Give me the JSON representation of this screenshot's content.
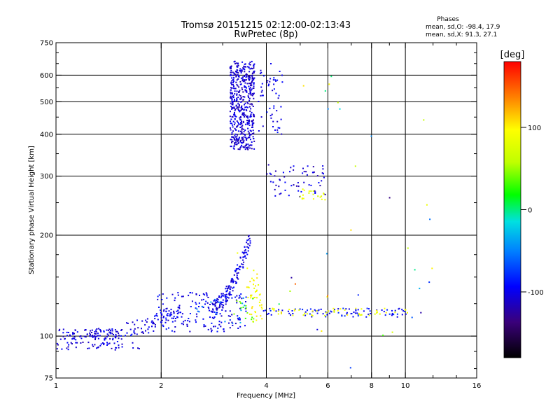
{
  "chart_data": {
    "type": "scatter",
    "title_line1": "Tromsø 20151215 02:12:00-02:13:43",
    "title_line2": "RwPretec (8p)",
    "phases": {
      "heading": "Phases",
      "o_line": "mean, sd,O: -98.4, 17.9",
      "x_line": "mean, sd,X:  91.3, 27.1"
    },
    "xlabel": "Frequency [MHz]",
    "ylabel": "Stationary phase Virtual Height [km]",
    "x_scale": "log",
    "y_scale": "log",
    "xlim": [
      1,
      16
    ],
    "ylim": [
      75,
      750
    ],
    "x_ticks": [
      {
        "v": 1,
        "label": "1"
      },
      {
        "v": 2,
        "label": "2"
      },
      {
        "v": 4,
        "label": "4"
      },
      {
        "v": 6,
        "label": "6"
      },
      {
        "v": 8,
        "label": "8"
      },
      {
        "v": 10,
        "label": "10"
      },
      {
        "v": 16,
        "label": "16"
      }
    ],
    "x_grid": [
      2,
      4,
      6,
      8,
      10
    ],
    "x_minor": [
      3,
      5,
      7,
      9,
      12,
      14
    ],
    "y_ticks": [
      {
        "v": 75,
        "label": "75"
      },
      {
        "v": 100,
        "label": "100"
      },
      {
        "v": 200,
        "label": "200"
      },
      {
        "v": 300,
        "label": "300"
      },
      {
        "v": 400,
        "label": "400"
      },
      {
        "v": 500,
        "label": "500"
      },
      {
        "v": 600,
        "label": "600"
      },
      {
        "v": 750,
        "label": "750"
      }
    ],
    "y_grid": [
      100,
      200,
      300,
      400,
      500,
      600
    ],
    "grid": true,
    "colorbar": {
      "label": "[deg]",
      "range": [
        -180,
        180
      ],
      "ticks": [
        {
          "v": 100,
          "label": "100"
        },
        {
          "v": 0,
          "label": "0"
        },
        {
          "v": -100,
          "label": "-100"
        }
      ]
    },
    "point_groups": [
      {
        "name": "e-layer-low",
        "x": [
          1.0,
          1.55
        ],
        "y": [
          97,
          105
        ],
        "phase": -105,
        "n": 90
      },
      {
        "name": "e-layer-low-bottom",
        "x": [
          1.0,
          1.75
        ],
        "y": [
          91,
          96
        ],
        "phase": -108,
        "n": 45
      },
      {
        "name": "e-rise",
        "x": [
          1.3,
          2.3
        ],
        "y": [
          100,
          120
        ],
        "phase": -102,
        "n": 90
      },
      {
        "name": "es-band",
        "x": [
          1.9,
          3.5
        ],
        "y": [
          103,
          135
        ],
        "phase": -100,
        "n": 170
      },
      {
        "name": "es-band-mixed",
        "x": [
          2.4,
          3.5
        ],
        "y": [
          105,
          130
        ],
        "phase": -45,
        "n": 20
      },
      {
        "name": "e-cusp",
        "x": [
          2.8,
          3.6
        ],
        "y": [
          120,
          195
        ],
        "phase": -103,
        "n": 150
      },
      {
        "name": "x-trace",
        "x": [
          3.5,
          3.9
        ],
        "y": [
          110,
          160
        ],
        "phase": 95,
        "n": 45
      },
      {
        "name": "x-trace-green",
        "x": [
          3.2,
          3.7
        ],
        "y": [
          108,
          130
        ],
        "phase": 40,
        "n": 15
      },
      {
        "name": "es-flat",
        "x": [
          3.9,
          10.2
        ],
        "y": [
          114,
          121
        ],
        "phase": -90,
        "n": 90
      },
      {
        "name": "es-flat-x",
        "x": [
          4.0,
          10.2
        ],
        "y": [
          115,
          121
        ],
        "phase": 90,
        "n": 50
      },
      {
        "name": "f-cluster",
        "x": [
          3.15,
          3.7
        ],
        "y": [
          360,
          660
        ],
        "phase": -108,
        "n": 520
      },
      {
        "name": "f-cluster-edge",
        "x": [
          3.8,
          4.45
        ],
        "y": [
          400,
          650
        ],
        "phase": -100,
        "n": 55
      },
      {
        "name": "f-trace",
        "x": [
          4.0,
          5.9
        ],
        "y": [
          260,
          325
        ],
        "phase": -106,
        "n": 60
      },
      {
        "name": "f-trace-x",
        "x": [
          5.0,
          5.9
        ],
        "y": [
          255,
          275
        ],
        "phase": 80,
        "n": 20
      },
      {
        "name": "scatter-mixed",
        "x": [
          3.0,
          12.0
        ],
        "y": [
          80,
          600
        ],
        "phase": 0,
        "n": 35
      }
    ]
  }
}
